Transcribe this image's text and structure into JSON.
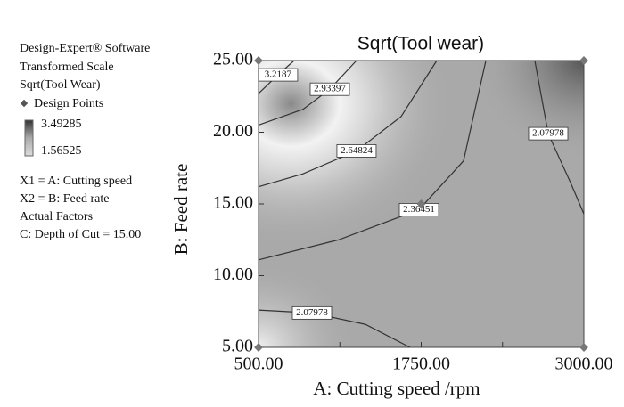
{
  "panel": {
    "software": "Design-Expert® Software",
    "scale": "Transformed Scale",
    "response": "Sqrt(Tool Wear)",
    "x1": "X1 = A: Cutting speed",
    "x2": "X2 = B: Feed rate",
    "actual_factors": "Actual Factors",
    "factor_c": "C: Depth of Cut = 15.00"
  },
  "chart_data": {
    "type": "contour",
    "title": "Sqrt(Tool wear)",
    "x_label": "A: Cutting speed /rpm",
    "y_label": "B: Feed rate",
    "xlim": [
      500,
      3000
    ],
    "ylim": [
      5,
      25
    ],
    "xticks": [
      {
        "value": 500,
        "label": "500.00"
      },
      {
        "value": 1750,
        "label": "1750.00"
      },
      {
        "value": 3000,
        "label": "3000.00"
      }
    ],
    "yticks": [
      {
        "value": 5,
        "label": "5.00"
      },
      {
        "value": 10,
        "label": "10.00"
      },
      {
        "value": 15,
        "label": "15.00"
      },
      {
        "value": 20,
        "label": "20.00"
      },
      {
        "value": 25,
        "label": "25.00"
      }
    ],
    "colorscale": {
      "max": 3.49285,
      "min": 1.56525
    },
    "contours": [
      {
        "level": 3.2187,
        "x": [
          774,
          650,
          500
        ],
        "y": [
          25,
          24,
          22.7
        ]
      },
      {
        "level": 2.93397,
        "x": [
          1253,
          1048,
          842,
          500
        ],
        "y": [
          25,
          23.0,
          21.6,
          20.5
        ]
      },
      {
        "level": 2.64824,
        "x": [
          1870,
          1596,
          1253,
          842,
          500
        ],
        "y": [
          25,
          21.1,
          18.7,
          17.1,
          16.2
        ]
      },
      {
        "level": 2.36451,
        "x": [
          500,
          1116,
          1733,
          2075,
          2247
        ],
        "y": [
          11.1,
          12.5,
          14.6,
          18.0,
          25
        ]
      },
      {
        "level": 2.07978,
        "x": [
          2623,
          2726,
          2897,
          3000
        ],
        "y": [
          25,
          19.9,
          16.5,
          14.3
        ]
      },
      {
        "level": 2.07978,
        "x": [
          500,
          911,
          1322,
          1664
        ],
        "y": [
          7.6,
          7.4,
          6.6,
          5
        ]
      }
    ],
    "points": {
      "name": "Design Points",
      "color": "#777777",
      "x": [
        500,
        500,
        3000,
        3000,
        1750
      ],
      "y": [
        5,
        25,
        5,
        25,
        15
      ]
    }
  }
}
